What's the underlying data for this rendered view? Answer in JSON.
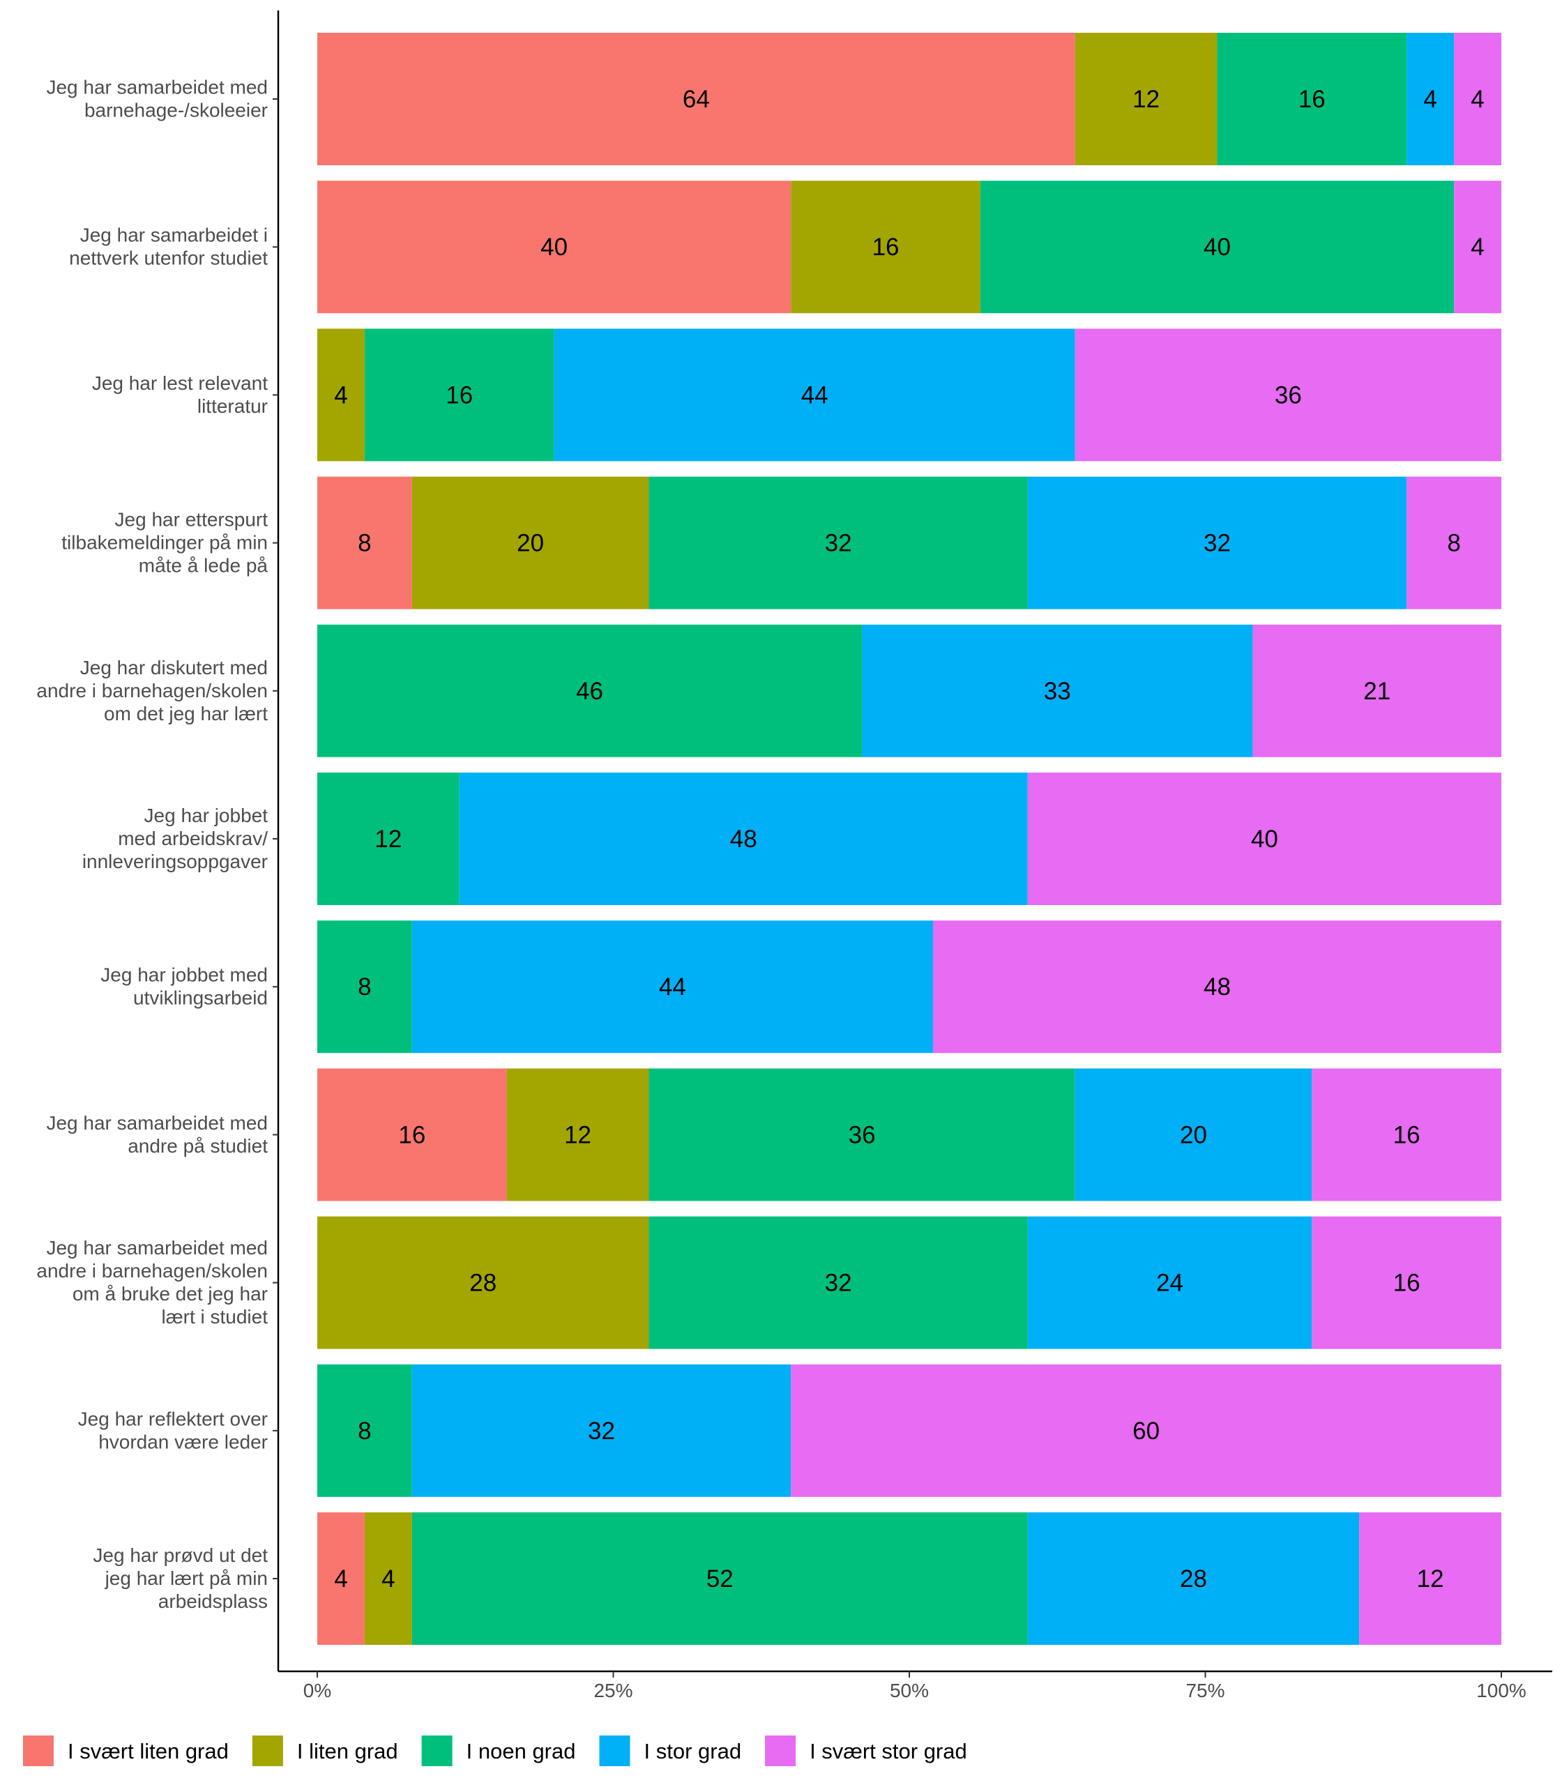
{
  "chart_data": {
    "type": "bar",
    "orientation": "horizontal",
    "stacked": true,
    "categories": [
      "Jeg har samarbeidet med barnehage-/skoleeier",
      "Jeg har samarbeidet i nettverk utenfor studiet",
      "Jeg har lest relevant litteratur",
      "Jeg har etterspurt tilbakemeldinger på min måte å lede på",
      "Jeg har diskutert med andre i barnehagen/skolen om det jeg har lært",
      "Jeg har jobbet med arbeidskrav/ innleveringsoppgaver",
      "Jeg har jobbet med utviklingsarbeid",
      "Jeg har samarbeidet med andre på studiet",
      "Jeg har samarbeidet med andre i barnehagen/skolen om å bruke det jeg har lært i studiet",
      "Jeg har reflektert over hvordan være leder",
      "Jeg har prøvd ut det jeg har lært på min arbeidsplass"
    ],
    "category_lines": [
      [
        "Jeg har samarbeidet med",
        "barnehage-/skoleeier"
      ],
      [
        "Jeg har samarbeidet i",
        "nettverk utenfor studiet"
      ],
      [
        "Jeg har lest relevant",
        "litteratur"
      ],
      [
        "Jeg har etterspurt",
        "tilbakemeldinger på min",
        "måte å lede på"
      ],
      [
        "Jeg har diskutert med",
        "andre i barnehagen/skolen",
        "om det jeg har lært"
      ],
      [
        "Jeg har jobbet",
        "med arbeidskrav/",
        "innleveringsoppgaver"
      ],
      [
        "Jeg har jobbet med",
        "utviklingsarbeid"
      ],
      [
        "Jeg har samarbeidet med",
        "andre på studiet"
      ],
      [
        "Jeg har samarbeidet med",
        "andre i barnehagen/skolen",
        "om å bruke det jeg har",
        "lært i studiet"
      ],
      [
        "Jeg har reflektert over",
        "hvordan være leder"
      ],
      [
        "Jeg har prøvd ut det",
        "jeg har lært på min",
        "arbeidsplass"
      ]
    ],
    "series": [
      {
        "name": "I svært liten grad",
        "color": "#F8766D",
        "values": [
          64,
          40,
          0,
          8,
          0,
          0,
          0,
          16,
          0,
          0,
          4
        ]
      },
      {
        "name": "I liten grad",
        "color": "#A3A500",
        "values": [
          12,
          16,
          4,
          20,
          0,
          0,
          0,
          12,
          28,
          0,
          4
        ]
      },
      {
        "name": "I noen grad",
        "color": "#00BF7D",
        "values": [
          16,
          40,
          16,
          32,
          46,
          12,
          8,
          36,
          32,
          8,
          52
        ]
      },
      {
        "name": "I stor grad",
        "color": "#00B0F6",
        "values": [
          4,
          0,
          44,
          32,
          33,
          48,
          44,
          20,
          24,
          32,
          28
        ]
      },
      {
        "name": "I svært stor grad",
        "color": "#E76BF3",
        "values": [
          4,
          4,
          36,
          8,
          21,
          40,
          48,
          16,
          16,
          60,
          12
        ]
      }
    ],
    "x_ticks": [
      "0%",
      "25%",
      "50%",
      "75%",
      "100%"
    ],
    "xlim": [
      0,
      100
    ],
    "grid": false,
    "legend_position": "bottom-left"
  }
}
